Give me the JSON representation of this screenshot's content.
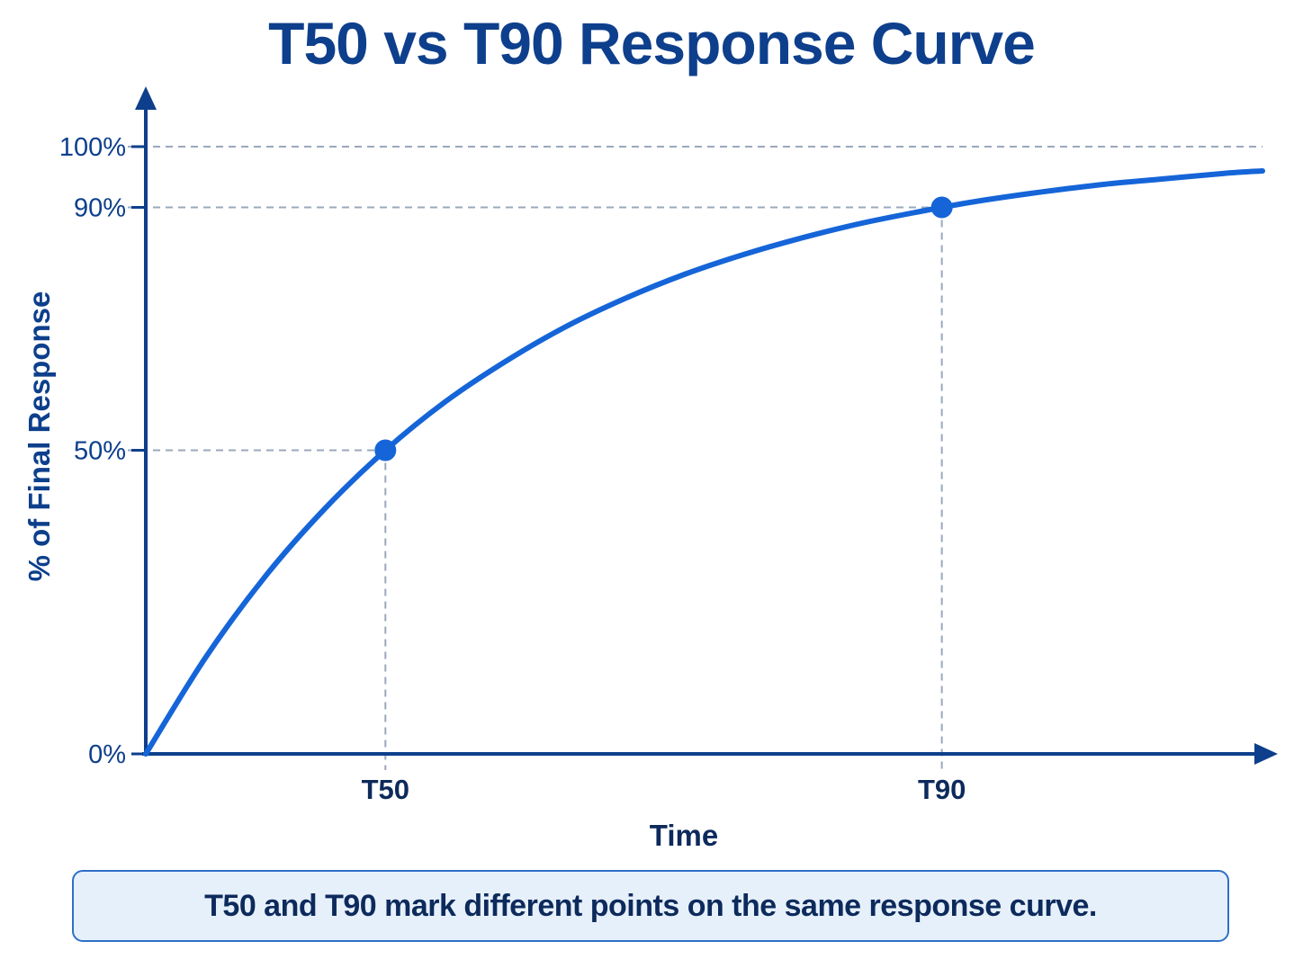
{
  "chart_data": {
    "type": "line",
    "title": "T50 vs T90 Response Curve",
    "xlabel": "Time",
    "ylabel": "% of Final Response",
    "ylim": [
      0,
      100
    ],
    "y_ticks": [
      {
        "value": 0,
        "label": "0%"
      },
      {
        "value": 50,
        "label": "50%"
      },
      {
        "value": 90,
        "label": "90%"
      },
      {
        "value": 100,
        "label": "100%"
      }
    ],
    "x_ticks": [
      {
        "value": 1,
        "label": "T50"
      },
      {
        "value": 3.3219,
        "label": "T90"
      }
    ],
    "xlim": [
      0,
      4.66
    ],
    "series": [
      {
        "x": [
          0,
          0.25,
          0.5,
          0.75,
          1,
          1.25,
          1.5,
          1.75,
          2,
          2.25,
          2.5,
          2.75,
          3,
          3.3219,
          3.5,
          3.75,
          4,
          4.25,
          4.5,
          4.66
        ],
        "y": [
          0,
          15.9,
          29.3,
          40.5,
          50,
          58,
          64.6,
          70.3,
          75,
          79,
          82.3,
          85.1,
          87.5,
          90,
          91.2,
          92.6,
          93.8,
          94.7,
          95.6,
          96
        ]
      }
    ],
    "highlight_points": [
      {
        "x": 1,
        "y": 50
      },
      {
        "x": 3.3219,
        "y": 90
      }
    ],
    "grid": false
  },
  "caption": "T50  and T90 mark different points on the same response curve.",
  "colors": {
    "curve": "#1565d8",
    "axis": "#0d3f8c",
    "guide": "#9aa8bc",
    "title": "#0d3f8c"
  }
}
